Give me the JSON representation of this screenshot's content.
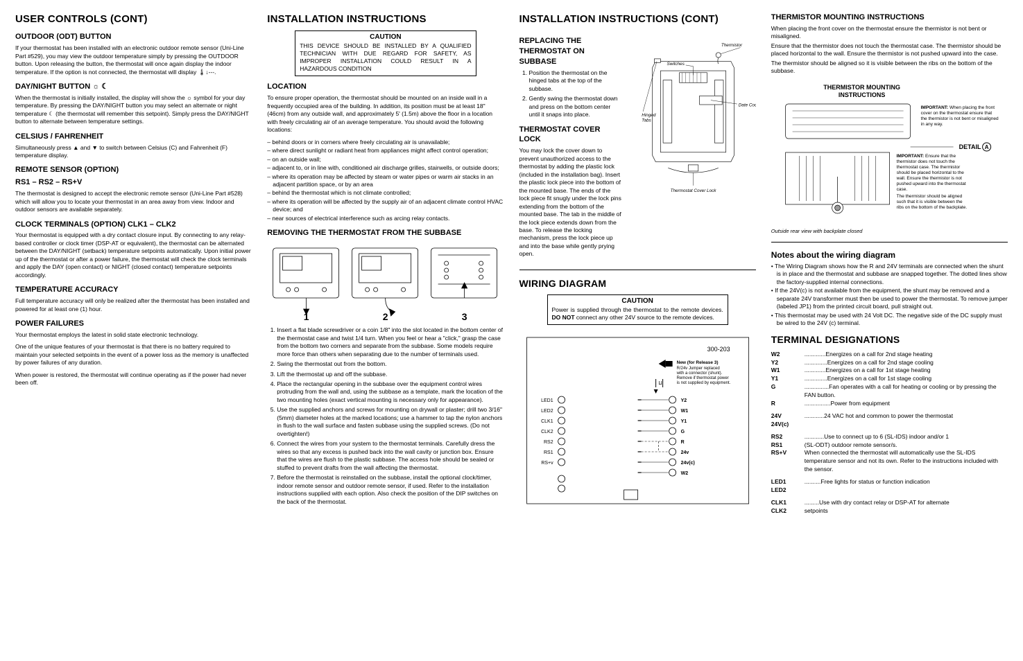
{
  "col1": {
    "h1": "USER CONTROLS (CONT)",
    "outdoor_h": "OUTDOOR (ODT) BUTTON",
    "outdoor_p": "If your thermostat has been installed with an electronic outdoor remote sensor (Uni-Line Part #529), you may view the outdoor temperature simply by pressing the OUTDOOR button. Upon releasing the button, the thermostat will once again display the indoor temperature. If the option is not connected, the thermostat will display 🌡↓---.",
    "daynight_h": "DAY/NIGHT BUTTON ☼ ☾",
    "daynight_p": "When the thermostat is initially installed, the display will show the ☼ symbol for your day temperature. By pressing the DAY/NIGHT button you may select an alternate or night temperature ☾ (the thermostat will remember this setpoint). Simply press the DAY/NIGHT button to alternate between temperature settings.",
    "cf_h": "CELSIUS / FAHRENHEIT",
    "cf_p": "Simultaneously press ▲ and ▼ to switch between Celsius (C) and Fahrenheit (F) temperature display.",
    "rs_h": "REMOTE SENSOR (OPTION)",
    "rs_sub": "RS1 – RS2 – RS+V",
    "rs_p": "The thermostat is designed to accept the electronic remote sensor (Uni-Line Part #528) which will allow you to locate your thermostat in an area away from view. Indoor and outdoor sensors are available separately.",
    "clk_h": "CLOCK TERMINALS (OPTION) CLK1 – CLK2",
    "clk_p": "Your thermostat is equipped with a dry contact closure input. By connecting to any relay-based controller or clock timer (DSP-AT or equivalent), the thermostat can be alternated between the DAY/NIGHT (setback) temperature setpoints automatically. Upon initial power up of the thermostat or after a power failure, the thermostat will check the clock terminals and apply the DAY (open contact) or NIGHT (closed contact) temperature setpoints accordingly.",
    "ta_h": "TEMPERATURE ACCURACY",
    "ta_p": "Full temperature accuracy will only be realized after the thermostat has been installed and powered for at least one (1) hour.",
    "pf_h": "POWER FAILURES",
    "pf_p1": "Your thermostat employs the latest in solid state electronic technology.",
    "pf_p2": "One of the unique features of your thermostat is that there is no battery required to maintain your selected setpoints in the event of a power loss as the memory is unaffected by power failures of any duration.",
    "pf_p3": "When power is restored, the thermostat will continue operating as if the power had never been off."
  },
  "col2": {
    "h1": "INSTALLATION INSTRUCTIONS",
    "caution_title": "CAUTION",
    "caution_body": "THIS DEVICE SHOULD BE INSTALLED BY A QUALIFIED TECHNICIAN WITH DUE REGARD FOR SAFETY, AS IMPROPER INSTALLATION COULD RESULT IN A HAZARDOUS CONDITION",
    "loc_h": "LOCATION",
    "loc_p": "To ensure proper operation, the thermostat should be mounted on an inside wall in a frequently occupied area of the building. In addition, its position must be at least 18\" (46cm) from any outside wall, and approximately 5' (1.5m) above the floor in a location with freely circulating air of an average temperature. You should avoid the following locations:",
    "loc_items": [
      "behind doors or in corners where freely circulating air is unavailable;",
      "where direct sunlight or radiant heat from appliances might affect control operation;",
      "on an outside wall;",
      "adjacent to, or in line with, conditioned air discharge grilles, stairwells, or outside doors;",
      "where its operation may be affected by steam or water pipes or warm air stacks in an adjacent partition space, or by an area",
      "behind the thermostat which is not climate controlled;",
      "where its operation will be affected by the supply air of an adjacent climate control HVAC device; and",
      "near sources of electrical interference such as arcing relay contacts."
    ],
    "rem_h": "REMOVING THE THERMOSTAT FROM THE SUBBASE",
    "steps": [
      "Insert a flat blade screwdriver or a coin 1/8\" into the slot located in the bottom center of the thermostat case and twist 1/4 turn. When you feel or hear a \"click,\" grasp the case from the bottom two corners and separate from the subbase. Some models require more force than others when separating due to the number of terminals used.",
      "Swing the thermostat out from the bottom.",
      "Lift the thermostat up and off the subbase.",
      "Place the rectangular opening in the subbase over the equipment control wires protruding from the wall and, using the subbase as a template, mark the location of the two mounting holes (exact vertical mounting is necessary only for appearance).",
      "Use the supplied anchors and screws for mounting on drywall or plaster; drill two 3/16\" (5mm) diameter holes at the marked locations; use a hammer to tap the nylon anchors in flush to the wall surface and fasten subbase using the supplied screws. (Do not overtighten!)",
      "Connect the wires from your system to the thermostat terminals. Carefully dress the wires so that any excess is pushed back into the wall cavity or junction box. Ensure that the wires are flush to the plastic subbase. The access hole should be sealed or stuffed to prevent drafts from the wall affecting the thermostat.",
      "Before the thermostat is reinstalled on the subbase, install the optional clock/timer, indoor remote sensor and outdoor remote sensor, if used. Refer to the installation instructions supplied with each option. Also check the position of the DIP switches on the back of the thermostat."
    ],
    "fig_labels": {
      "n1": "1",
      "n2": "2",
      "n3": "3"
    }
  },
  "col3": {
    "h1": "INSTALLATION INSTRUCTIONS (CONT)",
    "rep_h": "REPLACING THE THERMOSTAT ON SUBBASE",
    "rep_steps": [
      "Position the thermostat on the hinged tabs at the top of the subbase.",
      "Gently swing the thermostat down and press on the bottom center until it snaps into place."
    ],
    "tcl_h": "THERMOSTAT COVER LOCK",
    "tcl_p": "You may lock the cover down to prevent unauthorized access to the thermostat by adding the plastic lock (included in the installation bag). Insert the plastic lock piece into the bottom of the mounted base. The ends of the lock piece fit snugly under the lock pins extending from the bottom of the mounted base. The tab in the middle of the lock piece extends down from the base. To release the locking mechanism, press the lock piece up and into the base while gently prying open.",
    "fig_labels": {
      "thermistor": "Thermistor",
      "switches": "Switches",
      "datecode": "Date Code",
      "hinged": "Hinged Tabs",
      "coverlock": "Thermostat Cover Lock"
    },
    "wiring_h": "WIRING DIAGRAM",
    "caution_title": "CAUTION",
    "caution_body": "Power is supplied through the thermostat to the remote devices. DO NOT connect any other 24V source to the remote devices.",
    "wiring": {
      "model": "300-203",
      "note1": "New (for Release 3)",
      "note2": "R/24v Jumper replaced with a connector (shunt). Remove if thermostat power is not supplied by equipment.",
      "left_labels": [
        "LED1",
        "LED2",
        "CLK1",
        "CLK2",
        "RS2",
        "RS1",
        "RS+v"
      ],
      "right_labels": [
        "Y2",
        "W1",
        "Y1",
        "G",
        "R",
        "24v",
        "24v(c)",
        "W2"
      ]
    }
  },
  "col4": {
    "tmi_h": "THERMISTOR MOUNTING INSTRUCTIONS",
    "tmi_p1": "When placing the front cover on the thermostat ensure the thermistor is not bent or misaligned.",
    "tmi_p2": "Ensure that the thermistor does not touch the thermostat case. The thermistor should be placed horizontal to the wall. Ensure the thermistor is not pushed upward into the case.",
    "tmi_p3": "The thermistor should be aligned so it is visible between the ribs on the bottom of the subbase.",
    "tmi_fig_title": "THERMISTOR MOUNTING INSTRUCTIONS",
    "tmi_fig_imp1_h": "IMPORTANT:",
    "tmi_fig_imp1": "When placing the front cover on the thermostat ensure that the thermistor is not bent or misaligned in any way.",
    "tmi_detail": "DETAIL Ⓐ",
    "tmi_fig_imp2_h": "IMPORTANT:",
    "tmi_fig_imp2": "Ensure that the thermistor does not touch the thermostat case. The thermistor should be placed horizontal to the wall. Ensure the thermistor is not pushed upward into the thermostat case.",
    "tmi_fig_imp3": "The thermistor should be aligned such that it is visible between the ribs on the bottom of the backplate.",
    "tmi_caption": "Outside rear view with backplate closed",
    "notes_h": "Notes about the wiring diagram",
    "notes": [
      "The Wiring Diagram shows how the R and 24V terminals are connected when the shunt is in place and the thermostat and subbase are snapped together. The dotted lines show the factory-supplied internal connections.",
      "If the 24V(c) is not available from the equipment, the shunt may be removed and a separate 24V transformer must then be used to power the thermostat. To remove jumper (labeled JP1) from the printed circuit board, pull straight out.",
      "This thermostat may be used with 24 Volt DC. The negative side of the DC supply must be wired to the 24V (c) terminal."
    ],
    "td_h": "TERMINAL DESIGNATIONS",
    "terms": [
      {
        "k": "W2",
        "d": "Energizes on a call for 2nd stage heating",
        "dots": "............."
      },
      {
        "k": "Y2",
        "d": "Energizes on a call for 2nd stage cooling",
        "dots": ".............."
      },
      {
        "k": "W1",
        "d": "Energizes on a call for 1st stage heating",
        "dots": "............."
      },
      {
        "k": "Y1",
        "d": "Energizes on a call for 1st stage cooling",
        "dots": ".............."
      },
      {
        "k": "G",
        "d": "Fan operates with a call for heating or cooling or by pressing the FAN button.",
        "dots": "..............."
      },
      {
        "k": "R",
        "d": "Power from equipment",
        "dots": "................"
      }
    ],
    "terms2": [
      {
        "k": "24V",
        "d": "24 VAC hot and common to power the thermostat",
        "dots": "............"
      },
      {
        "k": "24V(c)",
        "d": "",
        "dots": ""
      }
    ],
    "terms3": [
      {
        "k": "RS2",
        "d": "Use to connect up to 6 (SL-IDS) indoor and/or 1",
        "dots": "............"
      },
      {
        "k": "RS1",
        "d": "(SL-ODT) outdoor remote sensor/s.",
        "dots": ""
      },
      {
        "k": "RS+V",
        "d": "When connected the thermostat will automatically use the SL-IDS temperature sensor and not its own. Refer to the instructions included with the sensor.",
        "dots": ""
      }
    ],
    "terms4": [
      {
        "k": "LED1",
        "d": "Free lights for status or function indication",
        "dots": ".........."
      },
      {
        "k": "LED2",
        "d": "",
        "dots": ""
      }
    ],
    "terms5": [
      {
        "k": "CLK1",
        "d": "Use with dry contact relay or DSP-AT for alternate",
        "dots": "........."
      },
      {
        "k": "CLK2",
        "d": "setpoints",
        "dots": ""
      }
    ]
  }
}
